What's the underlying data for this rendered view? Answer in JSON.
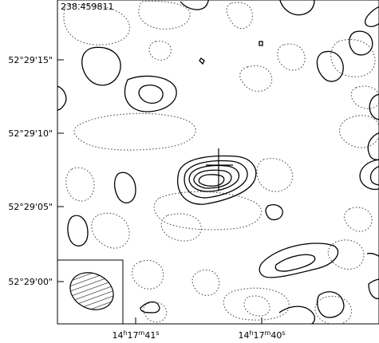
{
  "chart_data": {
    "type": "contour",
    "title": "",
    "field_id": "238.459811",
    "xlabel": "",
    "ylabel": "",
    "x_tick_labels": [
      "14h17m41s",
      "14h17m40s"
    ],
    "x_ticks": [
      {
        "h": "14",
        "m": "17",
        "s": "41"
      },
      {
        "h": "14",
        "m": "17",
        "s": "40"
      }
    ],
    "y_tick_labels": [
      "52°29'15\"",
      "52°29'10\"",
      "52°29'05\"",
      "52°29'00\""
    ],
    "contour_styles": {
      "positive": "solid",
      "negative": "dotted"
    },
    "source_marker": "cross at central peak",
    "beam": "hatched ellipse, lower-left box"
  }
}
